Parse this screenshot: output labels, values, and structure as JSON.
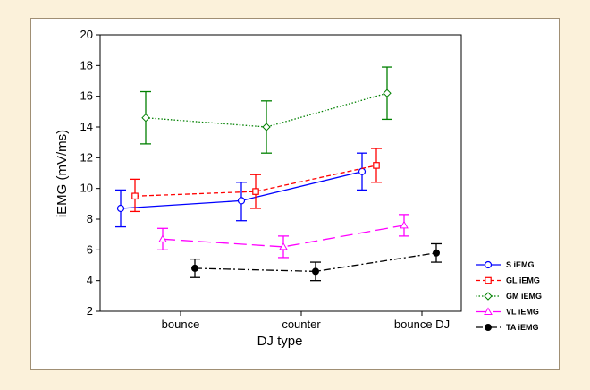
{
  "chart_data": {
    "type": "line",
    "title": "",
    "xlabel": "DJ type",
    "ylabel": "iEMG (mV/ms)",
    "categories": [
      "bounce",
      "counter",
      "bounce DJ"
    ],
    "ylim": [
      2,
      20
    ],
    "yticks": [
      2,
      4,
      6,
      8,
      10,
      12,
      14,
      16,
      18,
      20
    ],
    "grid": false,
    "legend_position": "right",
    "series": [
      {
        "name": "S iEMG",
        "color": "#0000ff",
        "dash": "solid",
        "marker": "open-circle",
        "values": [
          8.7,
          9.2,
          11.1
        ],
        "lower": [
          7.5,
          7.9,
          9.9
        ],
        "upper": [
          9.9,
          10.4,
          12.3
        ]
      },
      {
        "name": "GL iEMG",
        "color": "#ff0000",
        "dash": "dashed",
        "marker": "open-square",
        "values": [
          9.5,
          9.8,
          11.5
        ],
        "lower": [
          8.5,
          8.7,
          10.4
        ],
        "upper": [
          10.6,
          10.9,
          12.6
        ]
      },
      {
        "name": "GM iEMG",
        "color": "#008000",
        "dash": "dotted",
        "marker": "open-diamond",
        "values": [
          14.6,
          14.0,
          16.2
        ],
        "lower": [
          12.9,
          12.3,
          14.5
        ],
        "upper": [
          16.3,
          15.7,
          17.9
        ]
      },
      {
        "name": "VL iEMG",
        "color": "#ff00ff",
        "dash": "longdash",
        "marker": "open-triangle",
        "values": [
          6.7,
          6.2,
          7.6
        ],
        "lower": [
          6.0,
          5.5,
          6.9
        ],
        "upper": [
          7.4,
          6.9,
          8.3
        ]
      },
      {
        "name": "TA iEMG",
        "color": "#000000",
        "dash": "dashdot",
        "marker": "filled-circle",
        "values": [
          4.8,
          4.6,
          5.8
        ],
        "lower": [
          4.2,
          4.0,
          5.2
        ],
        "upper": [
          5.4,
          5.2,
          6.4
        ]
      }
    ]
  }
}
